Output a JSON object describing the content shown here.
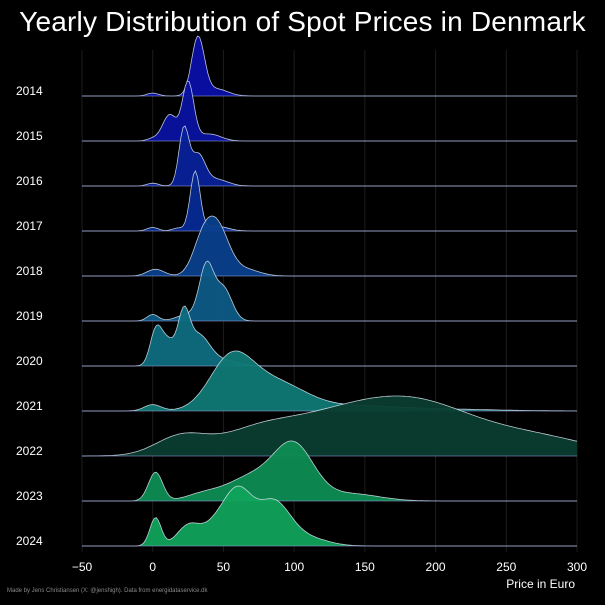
{
  "title": "Yearly Distribution of Spot Prices in Denmark",
  "credit": "Made by Jens Christiansen (X: @jenshigh). Data from energidataservice.dk",
  "chart_data": {
    "type": "area",
    "subtype": "ridgeline-density",
    "title": "Yearly Distribution of Spot Prices in Denmark",
    "xlabel": "Price in Euro",
    "ylabel": "",
    "xlim": [
      -50,
      300
    ],
    "xticks": [
      "−50",
      "0",
      "50",
      "100",
      "150",
      "200",
      "250",
      "300"
    ],
    "xtick_values": [
      -50,
      0,
      50,
      100,
      150,
      200,
      250,
      300
    ],
    "grid": true,
    "legend": "none",
    "series": [
      {
        "name": "2014",
        "color": "#0a0fa8",
        "peaks": [
          [
            0,
            0.05,
            4
          ],
          [
            32,
            1.0,
            4.5
          ],
          [
            45,
            0.12,
            8
          ]
        ]
      },
      {
        "name": "2015",
        "color": "#0a12a0",
        "peaks": [
          [
            0,
            0.04,
            4
          ],
          [
            12,
            0.45,
            5
          ],
          [
            25,
            1.0,
            4
          ],
          [
            40,
            0.12,
            8
          ]
        ]
      },
      {
        "name": "2016",
        "color": "#08219a",
        "peaks": [
          [
            0,
            0.05,
            4
          ],
          [
            22,
            1.0,
            3.5
          ],
          [
            32,
            0.55,
            5
          ],
          [
            45,
            0.12,
            8
          ]
        ]
      },
      {
        "name": "2017",
        "color": "#062994",
        "peaks": [
          [
            0,
            0.06,
            4
          ],
          [
            18,
            0.05,
            4
          ],
          [
            30,
            1.0,
            3.5
          ],
          [
            45,
            0.08,
            8
          ]
        ]
      },
      {
        "name": "2018",
        "color": "#083f8c",
        "peaks": [
          [
            2,
            0.12,
            6
          ],
          [
            35,
            0.55,
            7
          ],
          [
            46,
            0.82,
            8
          ],
          [
            65,
            0.12,
            10
          ]
        ]
      },
      {
        "name": "2019",
        "color": "#0d5a86",
        "peaks": [
          [
            0,
            0.1,
            4
          ],
          [
            38,
            0.82,
            5
          ],
          [
            50,
            0.5,
            6
          ],
          [
            25,
            0.1,
            8
          ]
        ]
      },
      {
        "name": "2020",
        "color": "#0e6d7f",
        "peaks": [
          [
            2,
            0.55,
            4
          ],
          [
            10,
            0.48,
            6
          ],
          [
            22,
            0.8,
            4
          ],
          [
            32,
            0.58,
            8
          ],
          [
            50,
            0.1,
            10
          ]
        ]
      },
      {
        "name": "2021",
        "color": "#0f7874",
        "peaks": [
          [
            0,
            0.1,
            6
          ],
          [
            55,
            0.75,
            15
          ],
          [
            85,
            0.45,
            22
          ],
          [
            140,
            0.07,
            30
          ],
          [
            200,
            0.03,
            40
          ]
        ]
      },
      {
        "name": "2022",
        "color": "#0a3d2f",
        "peaks": [
          [
            20,
            0.28,
            18
          ],
          [
            70,
            0.2,
            25
          ],
          [
            125,
            0.55,
            45
          ],
          [
            190,
            0.65,
            40
          ],
          [
            270,
            0.28,
            40
          ]
        ]
      },
      {
        "name": "2023",
        "color": "#0d8c52",
        "peaks": [
          [
            2,
            0.48,
            5
          ],
          [
            35,
            0.1,
            12
          ],
          [
            70,
            0.4,
            18
          ],
          [
            100,
            0.88,
            14
          ],
          [
            140,
            0.12,
            20
          ]
        ]
      },
      {
        "name": "2024",
        "color": "#10a35b",
        "peaks": [
          [
            2,
            0.45,
            4
          ],
          [
            25,
            0.3,
            8
          ],
          [
            50,
            0.48,
            12
          ],
          [
            62,
            0.55,
            9
          ],
          [
            85,
            0.7,
            12
          ],
          [
            110,
            0.12,
            14
          ]
        ]
      }
    ]
  }
}
